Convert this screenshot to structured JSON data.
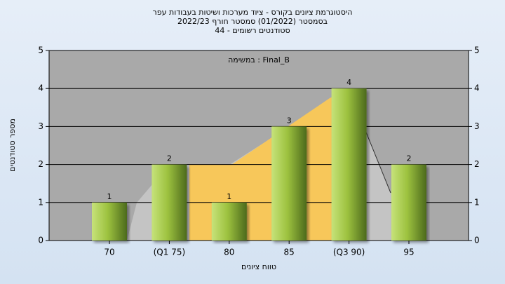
{
  "chart_data": {
    "type": "bar",
    "title": "היסטוגרמת ציונים בקורס - ציוד מערכות ושיטות בעבודות עפר",
    "subtitle": "בסמסטר  (01/2022)  סמסטר חורף  2022/23",
    "subtitle2": "סטודנטים רשומים - 44",
    "annotation": "במשימה : Final_B",
    "x_label": "טווח ציונים",
    "y_label": "מספר סטודנטים",
    "categories": [
      "70",
      "(Q1 75)",
      "80",
      "85",
      "(Q3 90)",
      "95"
    ],
    "values": [
      1,
      2,
      1,
      3,
      4,
      2
    ],
    "color": "#9dc23f",
    "ylim": [
      0,
      5
    ],
    "yticks": [
      0,
      1,
      2,
      3,
      4,
      5
    ],
    "grid": true
  }
}
